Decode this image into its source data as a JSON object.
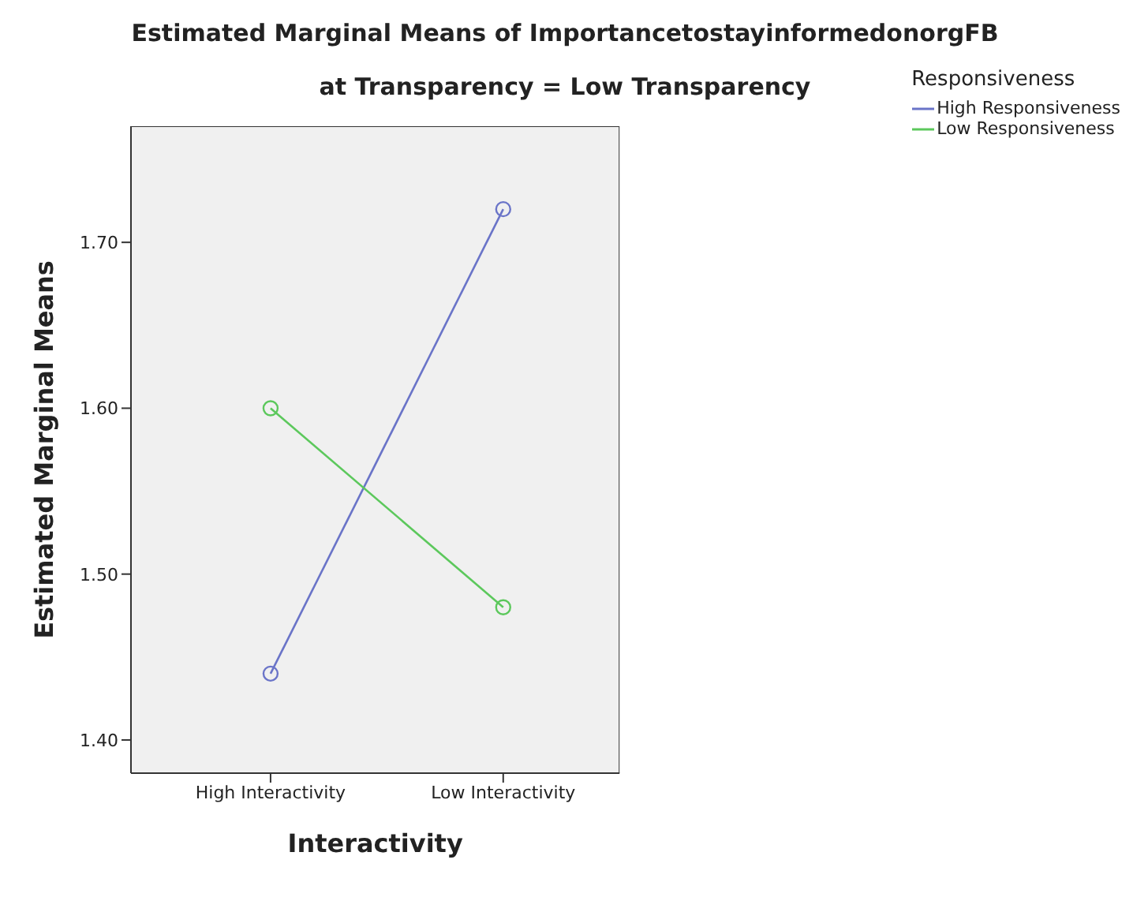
{
  "chart_data": {
    "type": "line",
    "title": "Estimated Marginal Means of ImportancetostayinformedonorgFB",
    "subtitle": "at Transparency = Low Transparency",
    "xlabel": "Interactivity",
    "ylabel": "Estimated Marginal Means",
    "legend_title": "Responsiveness",
    "categories": [
      "High Interactivity",
      "Low Interactivity"
    ],
    "series": [
      {
        "name": "High Responsiveness",
        "color": "#6a74c8",
        "values": [
          1.44,
          1.72
        ]
      },
      {
        "name": "Low Responsiveness",
        "color": "#5cc85c",
        "values": [
          1.6,
          1.48
        ]
      }
    ],
    "ylim": [
      1.38,
      1.77
    ],
    "yticks": [
      {
        "value": 1.4,
        "label": "1.40"
      },
      {
        "value": 1.5,
        "label": "1.50"
      },
      {
        "value": 1.6,
        "label": "1.60"
      },
      {
        "value": 1.7,
        "label": "1.70"
      }
    ],
    "grid": false,
    "legend": "top right",
    "marker": "circle",
    "line_style": "solid"
  }
}
